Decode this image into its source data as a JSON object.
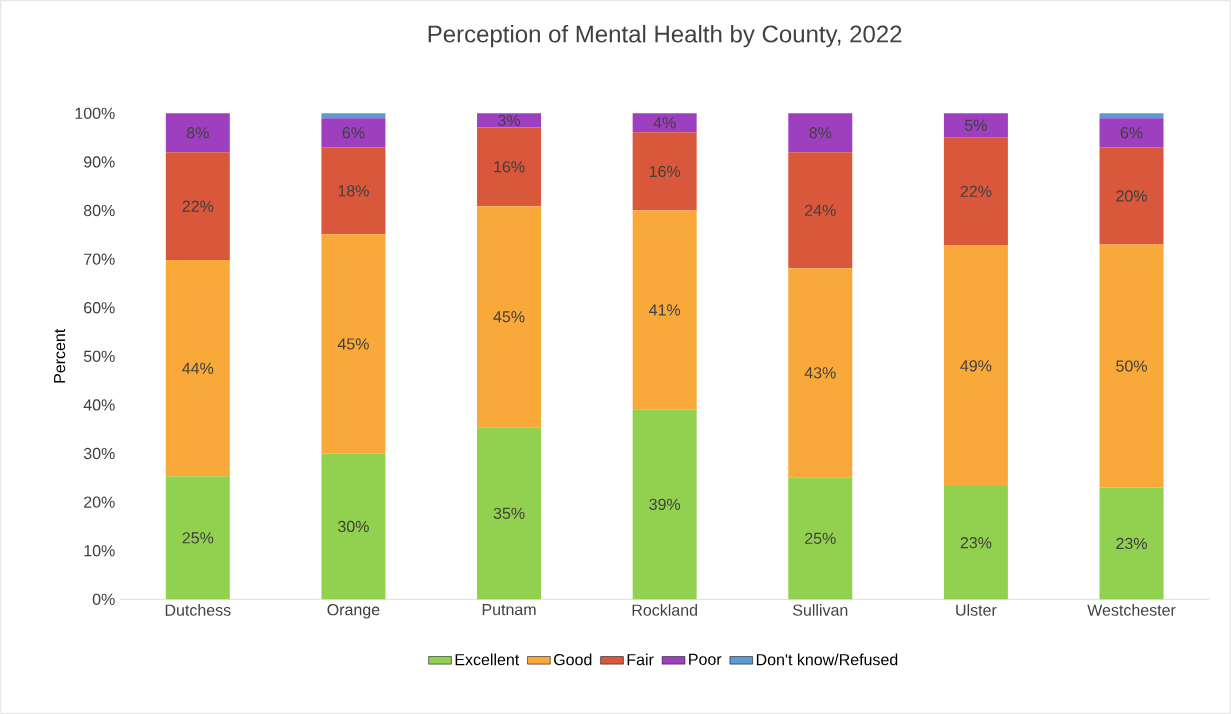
{
  "chart_data": {
    "type": "bar",
    "title": "Perception of Mental Health by County, 2022",
    "ylabel": "Percent",
    "categories": [
      "Dutchess",
      "Orange",
      "Putnam",
      "Rockland",
      "Sullivan",
      "Ulster",
      "Westchester"
    ],
    "stacked": true,
    "ylim": [
      0,
      100
    ],
    "yticks": [
      {
        "value": 0,
        "label": "0%"
      },
      {
        "value": 10,
        "label": "10%"
      },
      {
        "value": 20,
        "label": "20%"
      },
      {
        "value": 30,
        "label": "30%"
      },
      {
        "value": 40,
        "label": "40%"
      },
      {
        "value": 50,
        "label": "50%"
      },
      {
        "value": 60,
        "label": "60%"
      },
      {
        "value": 70,
        "label": "70%"
      },
      {
        "value": 80,
        "label": "80%"
      },
      {
        "value": 90,
        "label": "90%"
      },
      {
        "value": 100,
        "label": "100%"
      }
    ],
    "grid": false,
    "legend": "bottom",
    "series": [
      {
        "name": "Excellent",
        "color": "#92d050",
        "values": [
          25.3,
          30.0,
          35.4,
          39.1,
          25.1,
          23.3,
          23.0
        ],
        "value_labels": [
          "25%",
          "30%",
          "35%",
          "39%",
          "25%",
          "23%",
          "23%"
        ]
      },
      {
        "name": "Good",
        "color": "#f9a83a",
        "values": [
          44.5,
          45.1,
          45.5,
          40.9,
          43.0,
          49.5,
          50.0
        ],
        "value_labels": [
          "44%",
          "45%",
          "45%",
          "41%",
          "43%",
          "49%",
          "50%"
        ]
      },
      {
        "name": "Fair",
        "color": "#d9573b",
        "values": [
          22.2,
          17.9,
          16.2,
          16.1,
          23.9,
          22.3,
          20.0
        ],
        "value_labels": [
          "22%",
          "18%",
          "16%",
          "16%",
          "24%",
          "22%",
          "20%"
        ]
      },
      {
        "name": "Poor",
        "color": "#9e3fbf",
        "values": [
          8.0,
          6.0,
          2.9,
          3.9,
          8.0,
          4.9,
          6.0
        ],
        "value_labels": [
          "8%",
          "6%",
          "3%",
          "4%",
          "8%",
          "5%",
          "6%"
        ]
      },
      {
        "name": "Don't know/Refused",
        "color": "#5b9bd5",
        "values": [
          0,
          1.0,
          0,
          0,
          0,
          0,
          1.0
        ],
        "value_labels": [
          null,
          null,
          null,
          null,
          null,
          null,
          null
        ]
      }
    ]
  }
}
